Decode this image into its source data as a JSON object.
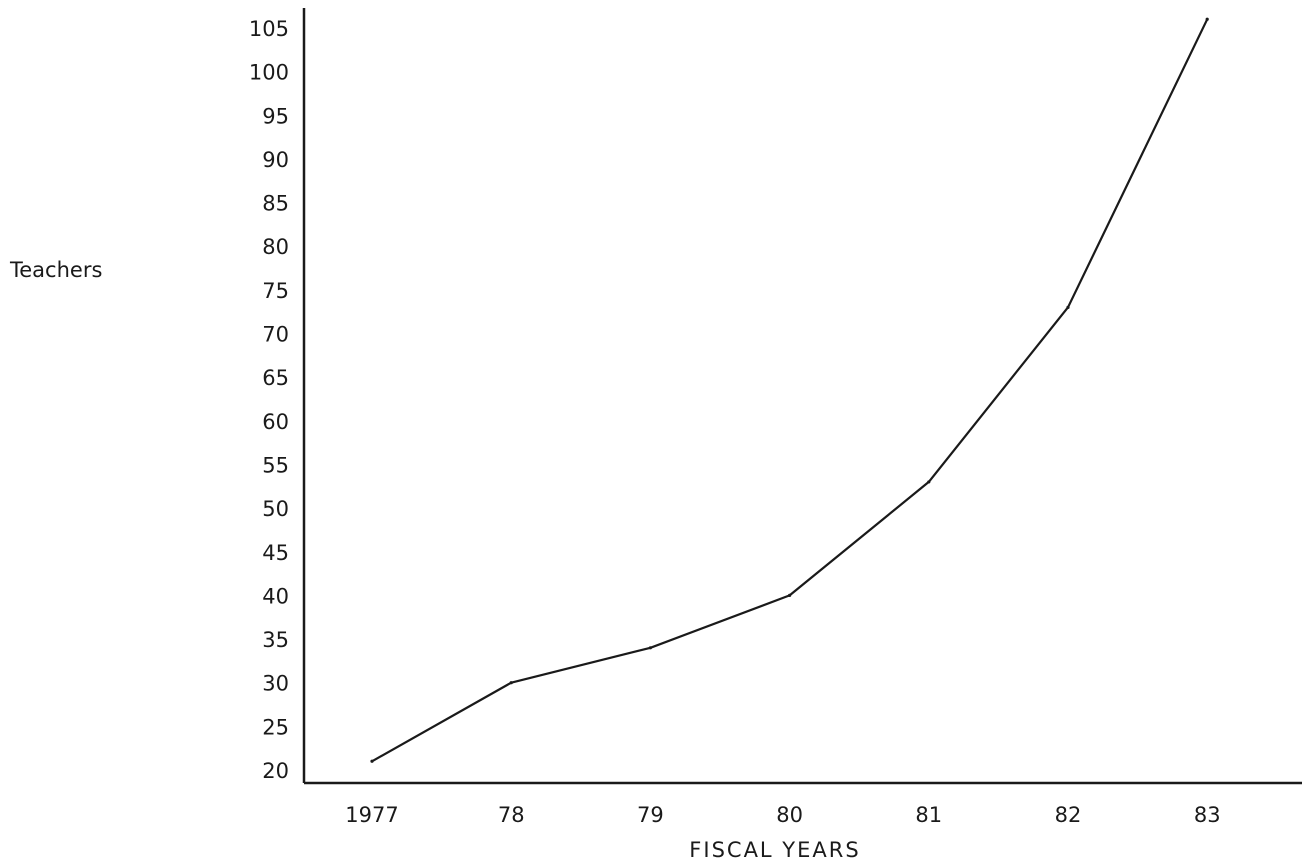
{
  "chart_data": {
    "type": "line",
    "title": "",
    "xlabel": "FISCAL YEARS",
    "ylabel": "Teachers",
    "categories": [
      "1977",
      "78",
      "79",
      "80",
      "81",
      "82",
      "83"
    ],
    "series": [
      {
        "values": [
          21,
          30,
          34,
          40,
          53,
          73,
          106
        ]
      }
    ],
    "yticks": [
      "20",
      "25",
      "30",
      "35",
      "40",
      "45",
      "50",
      "55",
      "60",
      "65",
      "70",
      "75",
      "80",
      "85",
      "90",
      "95",
      "100",
      "105"
    ],
    "ylim": [
      20,
      105
    ],
    "grid": false,
    "legend": "none",
    "line_color": "#1a1a1a"
  }
}
